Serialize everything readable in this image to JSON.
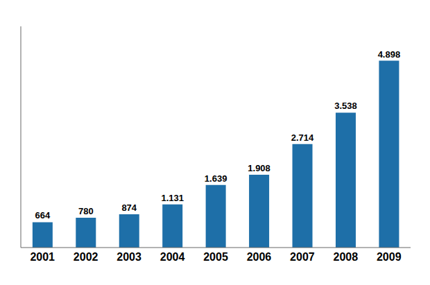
{
  "chart_data": {
    "type": "bar",
    "categories": [
      "2001",
      "2002",
      "2003",
      "2004",
      "2005",
      "2006",
      "2007",
      "2008",
      "2009"
    ],
    "values": [
      664,
      780,
      874,
      1131,
      1639,
      1908,
      2714,
      3538,
      4898
    ],
    "value_labels": [
      "664",
      "780",
      "874",
      "1.131",
      "1.639",
      "1.908",
      "2.714",
      "3.538",
      "4.898"
    ],
    "data_labels": true,
    "color": "#1e6fa8",
    "ylim": [
      0,
      5800
    ],
    "tick_labels": "x",
    "grid": false
  }
}
